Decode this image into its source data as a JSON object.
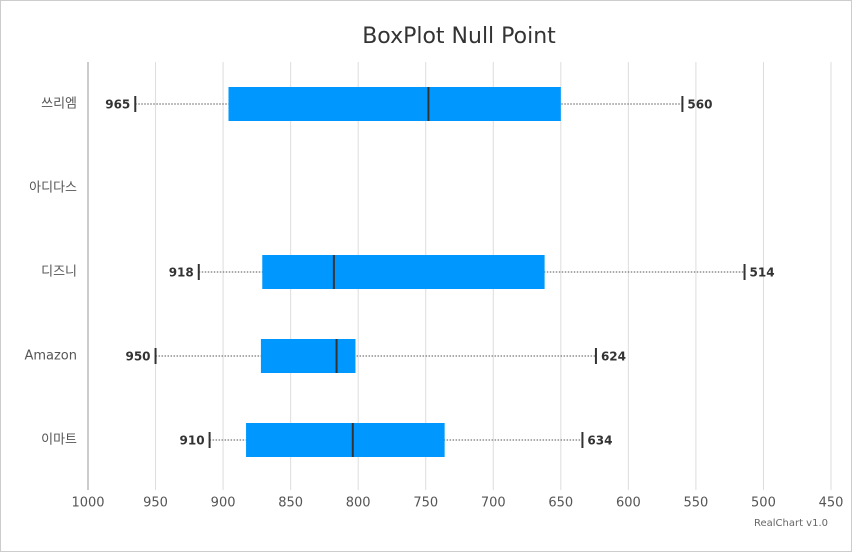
{
  "chart_data": {
    "type": "boxplot",
    "title": "BoxPlot Null Point",
    "categories": [
      "쓰리엠",
      "아디다스",
      "디즈니",
      "Amazon",
      "이마트"
    ],
    "values": [
      [
        560,
        650,
        748,
        896,
        965
      ],
      null,
      [
        514,
        662,
        818,
        871,
        918
      ],
      [
        624,
        802,
        816,
        872,
        950
      ],
      [
        634,
        736,
        804,
        883,
        910
      ]
    ],
    "color": "#0098ff",
    "median_color": "#333333",
    "xlim": [
      1000,
      450
    ],
    "xticks": [
      1000,
      950,
      900,
      850,
      800,
      750,
      700,
      650,
      600,
      550,
      500,
      450
    ],
    "grid": true,
    "credit": "RealChart v1.0"
  }
}
